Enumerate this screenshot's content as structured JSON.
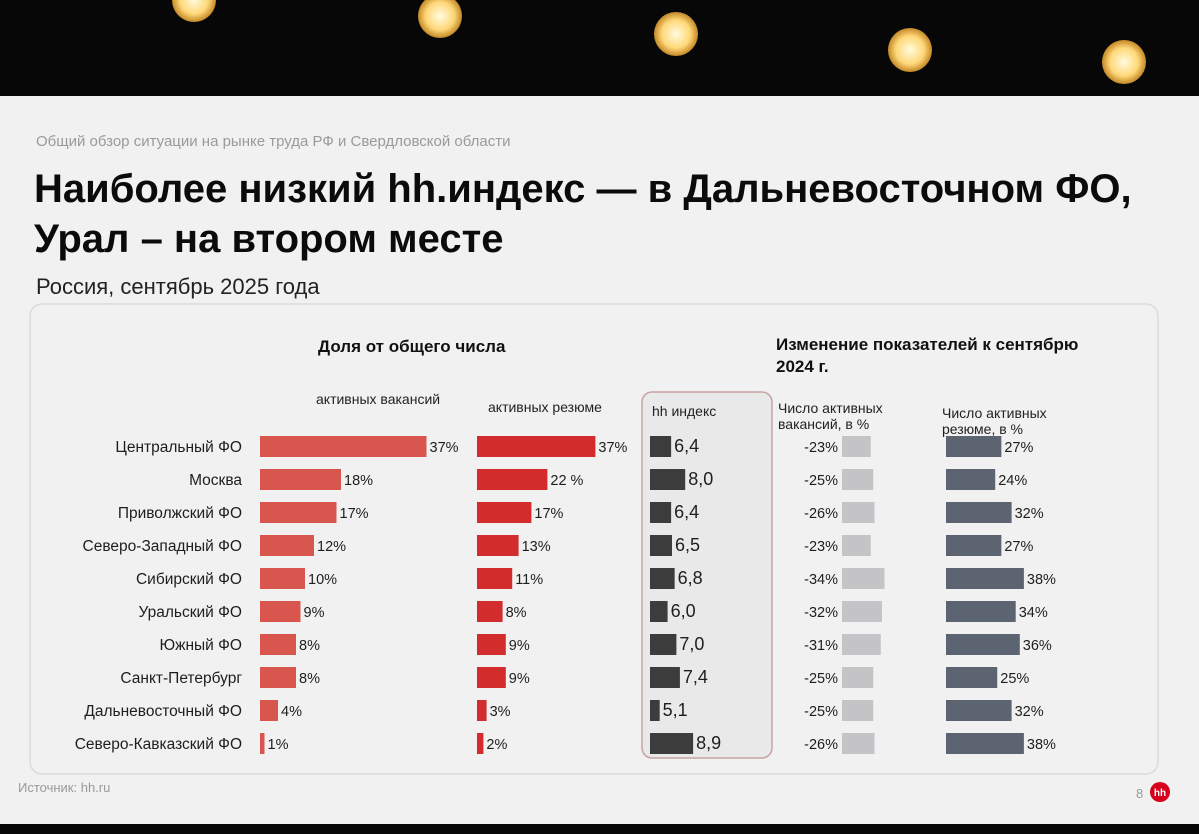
{
  "slide": {
    "kicker": "Общий обзор ситуации на рынке труда РФ и Свердловской области",
    "title_line1": "Наиболее низкий hh.индекс — в Дальневосточном ФО,",
    "title_line2": "Урал – на втором месте",
    "subtitle": "Россия, сентябрь 2025 года",
    "source": "Источник: hh.ru",
    "page_number": "8",
    "logo_text": "hh"
  },
  "colors": {
    "vacancies": "#d9564e",
    "resumes": "#d32c2c",
    "hh_index": "#3c3c3c",
    "change_vacancies": "#c4c4c7",
    "change_resumes": "#5c6472",
    "logo": "#d6001c"
  },
  "chart_data": {
    "type": "bar",
    "group_header_share": "Доля от общего числа",
    "group_header_change_line1": "Изменение показателей к сентябрю",
    "group_header_change_line2": "2024 г.",
    "categories": [
      "Центральный ФО",
      "Москва",
      "Приволжский ФО",
      "Северо-Западный ФО",
      "Сибирский ФО",
      "Уральский ФО",
      "Южный ФО",
      "Санкт-Петербург",
      "Дальневосточный ФО",
      "Северо-Кавказский ФО"
    ],
    "series": [
      {
        "name": "активных вакансий",
        "values": [
          37,
          18,
          17,
          12,
          10,
          9,
          8,
          8,
          4,
          1
        ],
        "labels": [
          "37%",
          "18%",
          "17%",
          "12%",
          "10%",
          "9%",
          "8%",
          "8%",
          "4%",
          "1%"
        ]
      },
      {
        "name": "активных резюме",
        "values": [
          37,
          22,
          17,
          13,
          11,
          8,
          9,
          9,
          3,
          2
        ],
        "labels": [
          "37%",
          "22 %",
          "17%",
          "13%",
          "11%",
          "8%",
          "9%",
          "9%",
          "3%",
          "2%"
        ]
      },
      {
        "name": "hh индекс",
        "values": [
          6.4,
          8.0,
          6.4,
          6.5,
          6.8,
          6.0,
          7.0,
          7.4,
          5.1,
          8.9
        ],
        "labels": [
          "6,4",
          "8,0",
          "6,4",
          "6,5",
          "6,8",
          "6,0",
          "7,0",
          "7,4",
          "5,1",
          "8,9"
        ]
      },
      {
        "name_line1": "Число активных",
        "name_line2": "вакансий, в %",
        "values": [
          -23,
          -25,
          -26,
          -23,
          -34,
          -32,
          -31,
          -25,
          -25,
          -26
        ],
        "labels": [
          "-23%",
          "-25%",
          "-26%",
          "-23%",
          "-34%",
          "-32%",
          "-31%",
          "-25%",
          "-25%",
          "-26%"
        ]
      },
      {
        "name_line1": "Число активных",
        "name_line2": "резюме, в %",
        "values": [
          27,
          24,
          32,
          27,
          38,
          34,
          36,
          25,
          32,
          38
        ],
        "labels": [
          "27%",
          "24%",
          "32%",
          "27%",
          "38%",
          "34%",
          "36%",
          "25%",
          "32%",
          "38%"
        ]
      }
    ]
  }
}
